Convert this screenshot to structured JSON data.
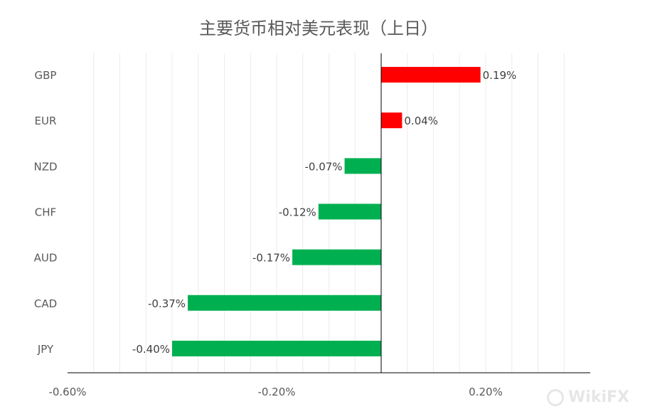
{
  "chart_data": {
    "type": "bar",
    "orientation": "horizontal",
    "title": "主要货币相对美元表现（上日）",
    "categories": [
      "GBP",
      "EUR",
      "NZD",
      "CHF",
      "AUD",
      "CAD",
      "JPY"
    ],
    "values": [
      0.19,
      0.04,
      -0.07,
      -0.12,
      -0.17,
      -0.37,
      -0.4
    ],
    "data_labels": [
      "0.19%",
      "0.04%",
      "-0.07%",
      "-0.12%",
      "-0.17%",
      "-0.37%",
      "-0.40%"
    ],
    "xlim": [
      -0.6,
      0.4
    ],
    "xticks": [
      -0.6,
      -0.2,
      0.2
    ],
    "xtick_labels": [
      "-0.60%",
      "-0.20%",
      "0.20%"
    ],
    "grid": true,
    "colors": {
      "positive": "#ff0000",
      "negative": "#00b050"
    }
  },
  "watermark": "WikiFX"
}
